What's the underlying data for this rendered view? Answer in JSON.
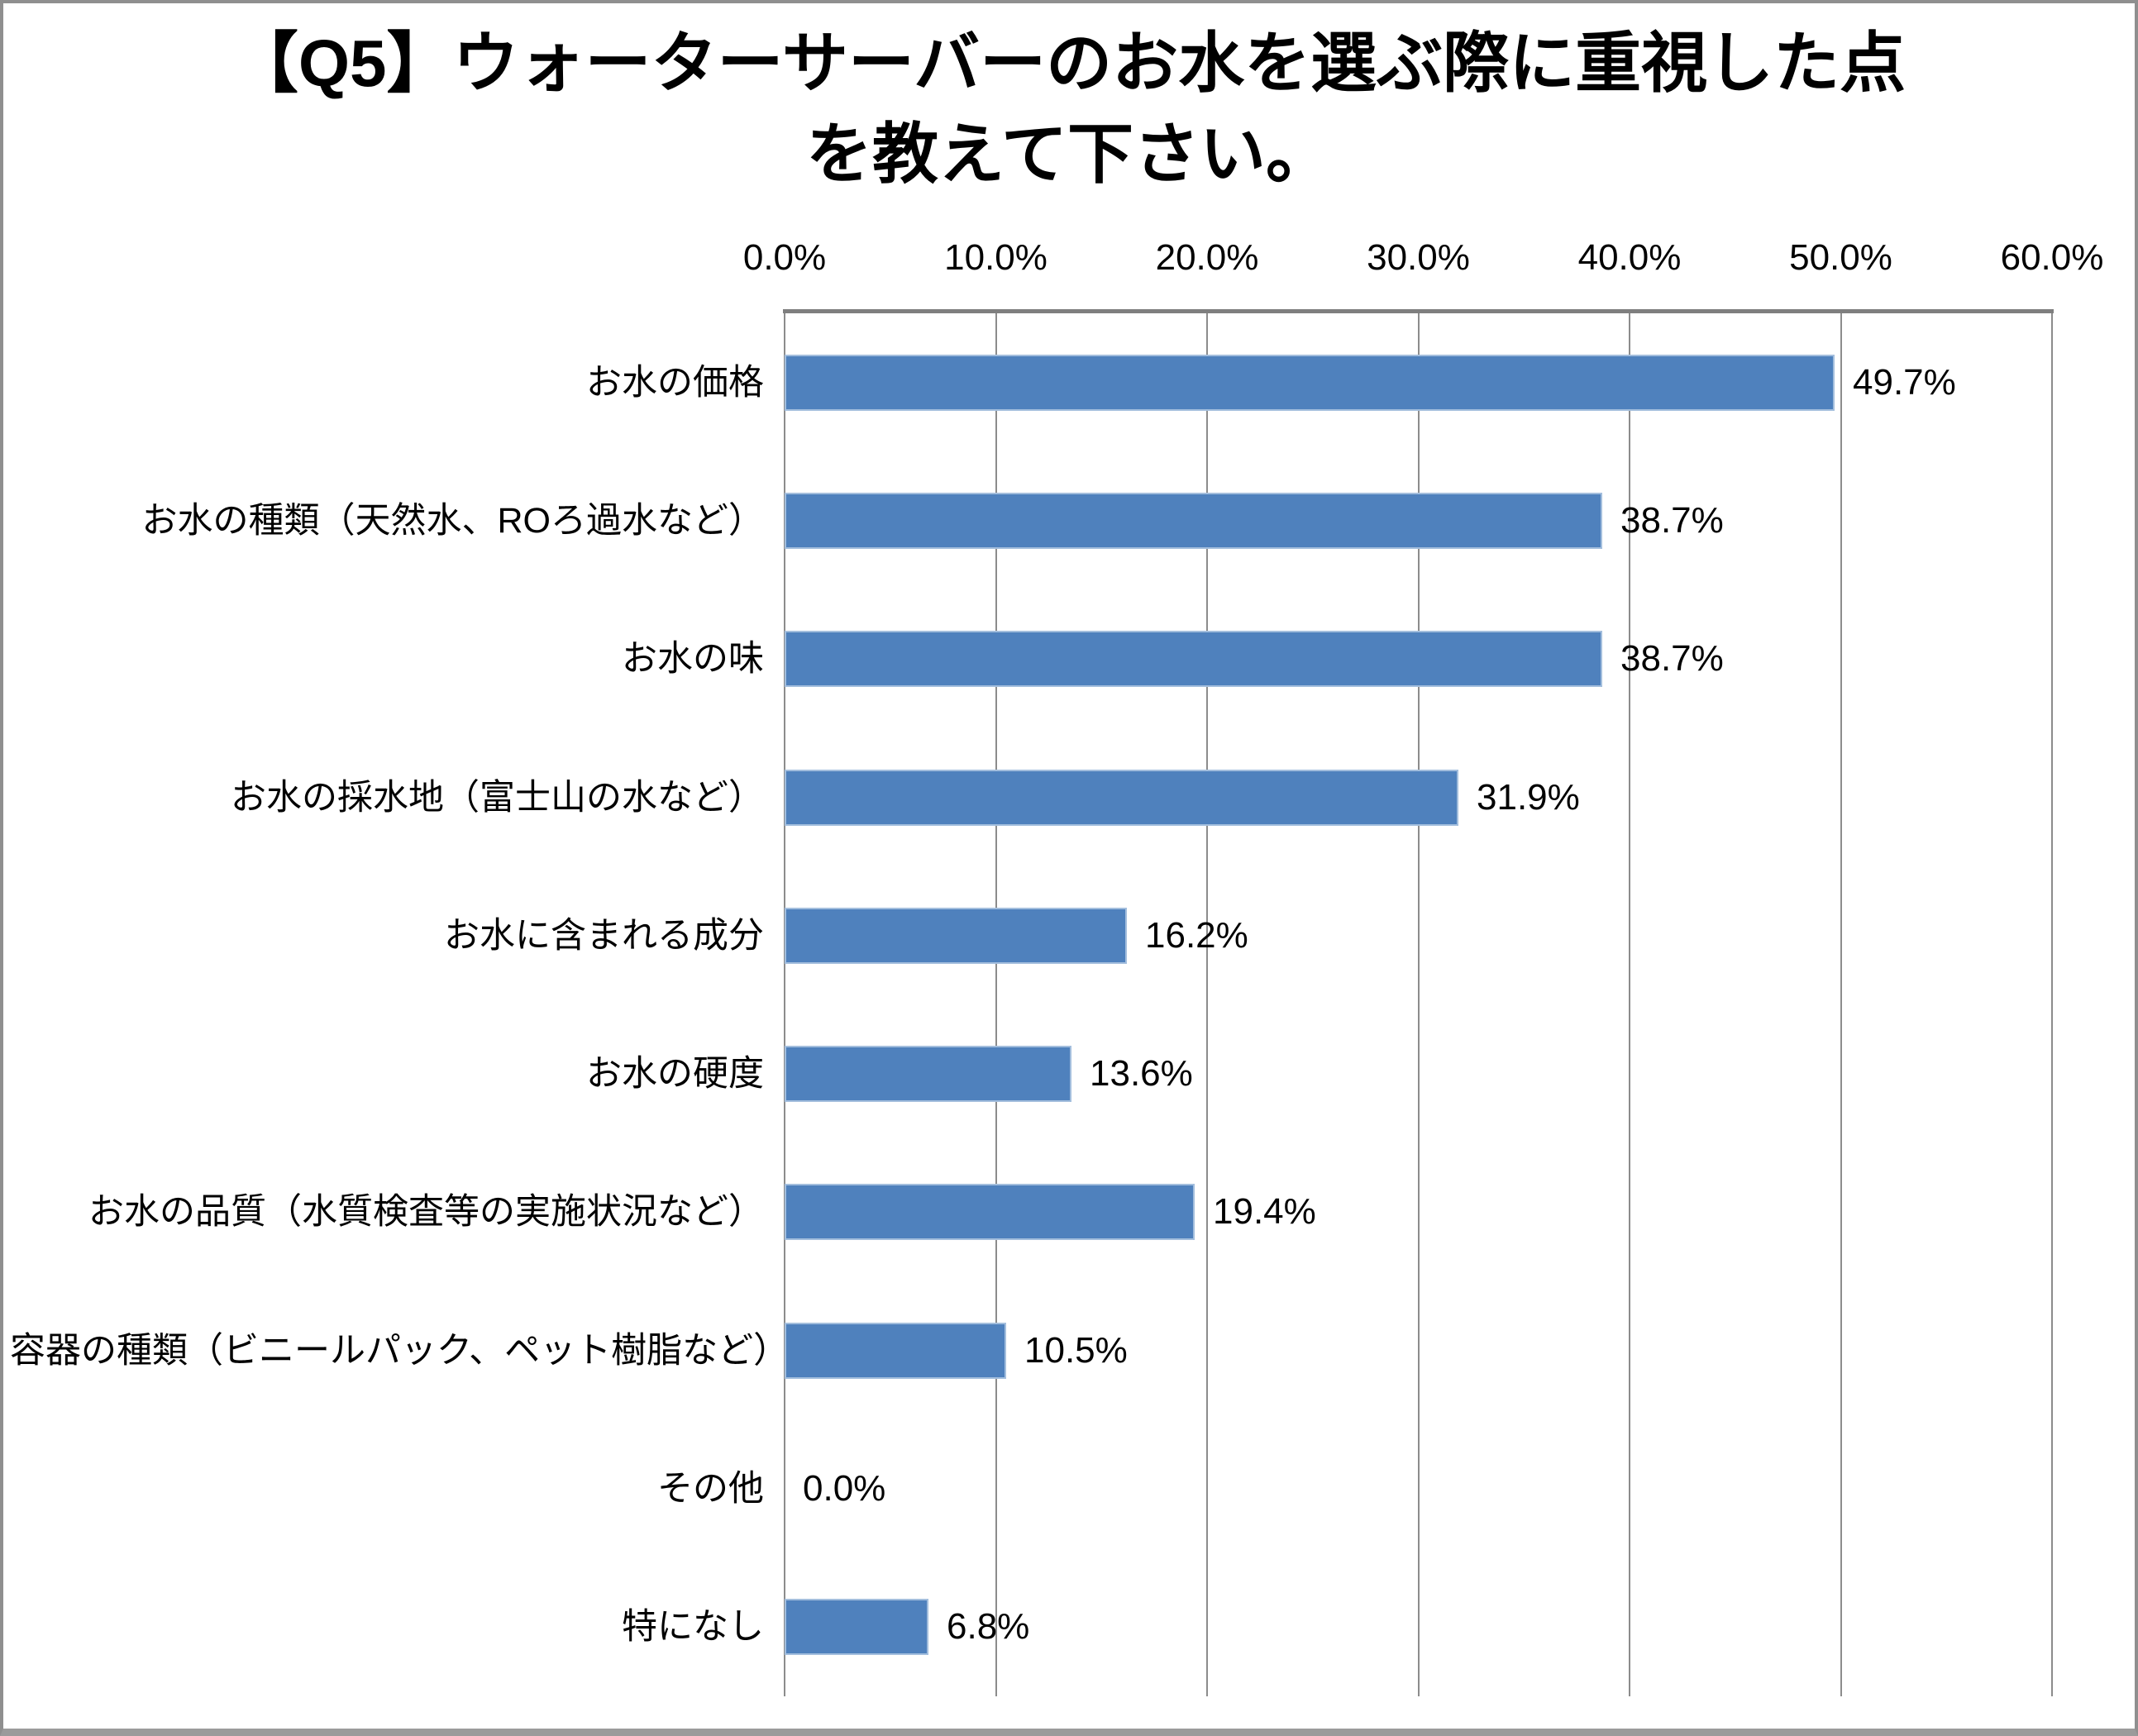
{
  "chart_data": {
    "type": "bar",
    "orientation": "horizontal",
    "title_lines": [
      "【Q5】ウォーターサーバーのお水を選ぶ際に重視した点",
      "を教えて下さい。"
    ],
    "title": "【Q5】ウォーターサーバーのお水を選ぶ際に重視した点を教えて下さい。",
    "categories": [
      "お水の価格",
      "お水の種類（天然水、ROろ過水など）",
      "お水の味",
      "お水の採水地（富士山の水など）",
      "お水に含まれる成分",
      "お水の硬度",
      "お水の品質（水質検査等の実施状況など）",
      "容器の種類（ビニールパック、ペット樹脂など）",
      "その他",
      "特になし"
    ],
    "values": [
      49.7,
      38.7,
      38.7,
      31.9,
      16.2,
      13.6,
      19.4,
      10.5,
      0.0,
      6.8
    ],
    "value_labels": [
      "49.7%",
      "38.7%",
      "38.7%",
      "31.9%",
      "16.2%",
      "13.6%",
      "19.4%",
      "10.5%",
      "0.0%",
      "6.8%"
    ],
    "x_axis": {
      "ticks": [
        "0.0%",
        "10.0%",
        "20.0%",
        "30.0%",
        "40.0%",
        "50.0%",
        "60.0%"
      ],
      "min": 0,
      "max": 60,
      "unit": "%"
    },
    "grid": true,
    "legend": "none",
    "colors": {
      "bar_fill": "#4f81bd",
      "bar_edge": "#a3bedd",
      "gridline": "#8c8c8c",
      "axis_line": "#7f7f7f",
      "text": "#000000",
      "frame_border": "#8f8f8f"
    }
  }
}
